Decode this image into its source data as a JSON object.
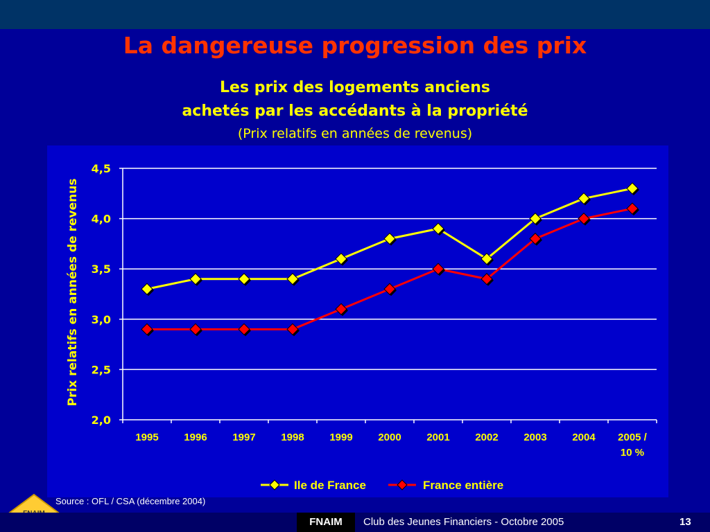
{
  "slide": {
    "title": "La dangereuse progression des prix",
    "subtitle_line1": "Les prix des logements anciens",
    "subtitle_line2": "achetés par les accédants à la propriété",
    "subtitle_line3": "(Prix relatifs en années de revenus)",
    "source": "Source : OFL / CSA  (décembre 2004)"
  },
  "footer": {
    "brand": "FNAIM",
    "text": "Club des Jeunes Financiers - Octobre 2005",
    "page": "13"
  },
  "logo": {
    "text": "FNAIM",
    "icon": "fnaim-diamond-logo"
  },
  "colors": {
    "background": "#000099",
    "plot_area": "#0000cc",
    "title": "#ff3300",
    "subtitle": "#ffff00",
    "series_ile_de_france": "#ffff00",
    "series_france": "#ff0000"
  },
  "chart_data": {
    "type": "line",
    "title": "",
    "xlabel": "",
    "ylabel": "Prix relatifs en années de revenus",
    "categories": [
      "1995",
      "1996",
      "1997",
      "1998",
      "1999",
      "2000",
      "2001",
      "2002",
      "2003",
      "2004",
      "2005 / 10 %"
    ],
    "y_ticks": [
      "2,0",
      "2,5",
      "3,0",
      "3,5",
      "4,0",
      "4,5"
    ],
    "ylim": [
      2.0,
      4.5
    ],
    "grid": true,
    "legend_position": "bottom",
    "series": [
      {
        "name": "Ile de France",
        "color": "#ffff00",
        "values": [
          3.3,
          3.4,
          3.4,
          3.4,
          3.6,
          3.8,
          3.9,
          3.6,
          4.0,
          4.2,
          4.3
        ]
      },
      {
        "name": "France entière",
        "color": "#ff0000",
        "values": [
          2.9,
          2.9,
          2.9,
          2.9,
          3.1,
          3.3,
          3.5,
          3.4,
          3.8,
          4.0,
          4.1
        ]
      }
    ]
  }
}
